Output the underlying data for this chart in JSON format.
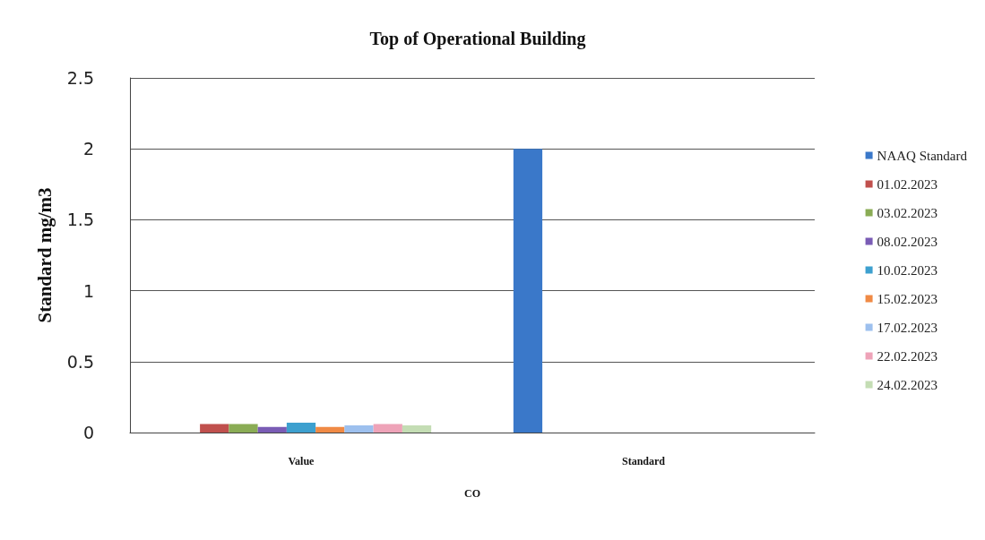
{
  "chart_data": {
    "type": "bar",
    "title": "Top of Operational Building",
    "xlabel": "CO",
    "ylabel": "Standard mg/m3",
    "categories": [
      "Value",
      "Standard"
    ],
    "series": [
      {
        "name": "NAAQ Standard",
        "color": "#3a78c9",
        "values": [
          null,
          2
        ]
      },
      {
        "name": "01.02.2023",
        "color": "#c0504d",
        "values": [
          0.06,
          null
        ]
      },
      {
        "name": "03.02.2023",
        "color": "#8aac55",
        "values": [
          0.06,
          null
        ]
      },
      {
        "name": "08.02.2023",
        "color": "#7a5cb5",
        "values": [
          0.04,
          null
        ]
      },
      {
        "name": "10.02.2023",
        "color": "#3da0cf",
        "values": [
          0.07,
          null
        ]
      },
      {
        "name": "15.02.2023",
        "color": "#f08a45",
        "values": [
          0.04,
          null
        ]
      },
      {
        "name": "17.02.2023",
        "color": "#9dc0ee",
        "values": [
          0.05,
          null
        ]
      },
      {
        "name": "22.02.2023",
        "color": "#eea3b8",
        "values": [
          0.06,
          null
        ]
      },
      {
        "name": "24.02.2023",
        "color": "#c4ddb4",
        "values": [
          0.05,
          null
        ]
      }
    ],
    "ylim": [
      0,
      2.5
    ],
    "yticks": [
      0,
      0.5,
      1,
      1.5,
      2,
      2.5
    ],
    "grid": "y",
    "legend": "right"
  }
}
